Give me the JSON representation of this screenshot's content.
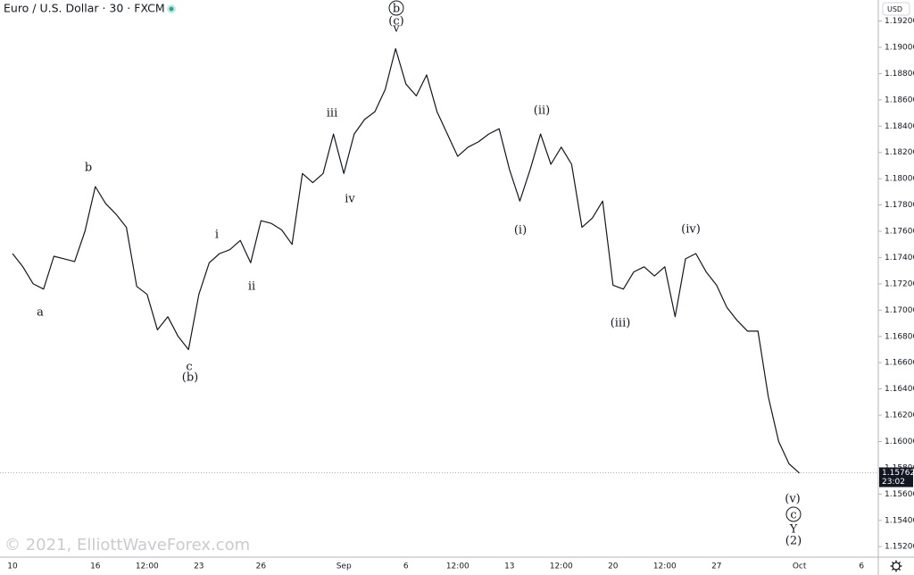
{
  "chart_data": {
    "type": "line",
    "title": "Euro / U.S. Dollar · 30 · FXCM",
    "currency": "USD",
    "watermark": "© 2021, ElliottWaveForex.com",
    "color": "#131722",
    "categories": [
      "10",
      null,
      null,
      null,
      null,
      null,
      null,
      null,
      "16",
      null,
      null,
      null,
      null,
      "12:00",
      null,
      null,
      null,
      null,
      "23",
      null,
      null,
      null,
      null,
      null,
      "26",
      null,
      null,
      null,
      null,
      null,
      null,
      null,
      "Sep",
      null,
      null,
      null,
      null,
      null,
      "6",
      null,
      null,
      null,
      null,
      "12:00",
      null,
      null,
      null,
      null,
      "13",
      null,
      null,
      null,
      null,
      "12:00",
      null,
      null,
      null,
      null,
      "20",
      null,
      null,
      null,
      null,
      "12:00",
      null,
      null,
      null,
      null,
      "27",
      null,
      null,
      null,
      null,
      null,
      null,
      null,
      "Oct",
      null,
      null,
      null,
      null,
      null,
      "6"
    ],
    "values": [
      1.1743,
      1.1733,
      1.172,
      1.1716,
      1.1741,
      1.1739,
      1.1737,
      1.176,
      1.1794,
      1.1781,
      1.1773,
      1.1763,
      1.1718,
      1.1712,
      1.1685,
      1.1695,
      1.168,
      1.167,
      1.1712,
      1.1736,
      1.1743,
      1.1746,
      1.1753,
      1.1736,
      1.1768,
      1.1766,
      1.1761,
      1.175,
      1.1804,
      1.1797,
      1.1804,
      1.1834,
      1.1804,
      1.1834,
      1.1845,
      1.1851,
      1.1868,
      1.1899,
      1.1872,
      1.1863,
      1.1879,
      1.1851,
      1.1834,
      1.1817,
      1.1824,
      1.1828,
      1.1834,
      1.1838,
      1.1807,
      1.1783,
      1.1807,
      1.1834,
      1.1811,
      1.1824,
      1.1811,
      1.1763,
      1.177,
      1.1783,
      1.1719,
      1.1716,
      1.1729,
      1.1733,
      1.1726,
      1.1733,
      1.1695,
      1.1739,
      1.1743,
      1.1729,
      1.1719,
      1.1702,
      1.1692,
      1.1684,
      1.1684,
      1.1634,
      1.16,
      1.1583,
      1.1576,
      null,
      null,
      null,
      null,
      null,
      null
    ],
    "last_price": 1.15762,
    "countdown": "23:02",
    "ylim": [
      1.1512,
      1.1936
    ],
    "yticks": [
      {
        "value": 1.152,
        "label": "1.15200"
      },
      {
        "value": 1.154,
        "label": "1.15400"
      },
      {
        "value": 1.156,
        "label": "1.15600"
      },
      {
        "value": 1.158,
        "label": "1.15800"
      },
      {
        "value": 1.16,
        "label": "1.16000"
      },
      {
        "value": 1.162,
        "label": "1.16200"
      },
      {
        "value": 1.164,
        "label": "1.16400"
      },
      {
        "value": 1.166,
        "label": "1.16600"
      },
      {
        "value": 1.168,
        "label": "1.16800"
      },
      {
        "value": 1.17,
        "label": "1.17000"
      },
      {
        "value": 1.172,
        "label": "1.17200"
      },
      {
        "value": 1.174,
        "label": "1.17400"
      },
      {
        "value": 1.176,
        "label": "1.17600"
      },
      {
        "value": 1.178,
        "label": "1.17800"
      },
      {
        "value": 1.18,
        "label": "1.18000"
      },
      {
        "value": 1.182,
        "label": "1.18200"
      },
      {
        "value": 1.184,
        "label": "1.18400"
      },
      {
        "value": 1.186,
        "label": "1.18600"
      },
      {
        "value": 1.188,
        "label": "1.18800"
      },
      {
        "value": 1.19,
        "label": "1.19000"
      },
      {
        "value": 1.192,
        "label": "1.19200"
      }
    ],
    "annotations": [
      "a",
      "b",
      "c",
      "(b)",
      "i",
      "ii",
      "iii",
      "iv",
      "b",
      "(c)",
      "v",
      "(i)",
      "(ii)",
      "(iii)",
      "(iv)",
      "(v)",
      "c",
      "Y",
      "(2)"
    ]
  }
}
